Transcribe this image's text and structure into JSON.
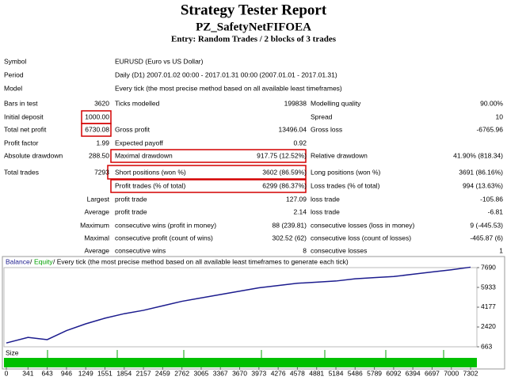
{
  "report": {
    "title": "Strategy Tester Report",
    "expert": "PZ_SafetyNetFIFOEA",
    "entry": "Entry: Random Trades / 2 blocks of 3 trades"
  },
  "rows": [
    [
      "Symbol",
      "EURUSD (Euro vs US Dollar)"
    ],
    [
      "Period",
      "Daily (D1) 2007.01.02 00:00 - 2017.01.31 00:00 (2007.01.01 - 2017.01.31)"
    ],
    [
      "Model",
      "Every tick (the most precise method based on all available least timeframes)"
    ],
    [
      "Bars in test",
      "3620",
      "Ticks modelled",
      "199838",
      "Modelling quality",
      "90.00%"
    ],
    [
      "Initial deposit",
      "1000.00",
      null,
      null,
      "Spread",
      "10"
    ],
    [
      "Total net profit",
      "6730.08",
      "Gross profit",
      "13496.04",
      "Gross loss",
      "-6765.96"
    ],
    [
      "Profit factor",
      "1.99",
      "Expected payoff",
      "0.92",
      null,
      null
    ],
    [
      "Absolute drawdown",
      "288.50",
      "Maximal drawdown",
      "917.75 (12.52%)",
      "Relative drawdown",
      "41.90% (818.34)"
    ],
    [
      "Total trades",
      "7293",
      "Short positions (won %)",
      "3602 (86.59%)",
      "Long positions (won %)",
      "3691 (86.16%)"
    ],
    [
      null,
      null,
      "Profit trades (% of total)",
      "6299 (86.37%)",
      "Loss trades (% of total)",
      "994 (13.63%)"
    ],
    [
      null,
      "Largest",
      "profit trade",
      "127.09",
      "loss trade",
      "-105.86"
    ],
    [
      null,
      "Average",
      "profit trade",
      "2.14",
      "loss trade",
      "-6.81"
    ],
    [
      null,
      "Maximum",
      "consecutive wins (profit in money)",
      "88 (239.81)",
      "consecutive losses (loss in money)",
      "9 (-445.53)"
    ],
    [
      null,
      "Maximal",
      "consecutive profit (count of wins)",
      "302.52 (62)",
      "consecutive loss (count of losses)",
      "-465.87 (6)"
    ],
    [
      null,
      "Average",
      "consecutive wins",
      "8",
      "consecutive losses",
      "1"
    ]
  ],
  "chart_data": {
    "type": "line",
    "legend_separator": "/",
    "equity_label": "Equity",
    "subtitle": "/ Every tick (the most precise method based on all available least timeframes to generate each tick)",
    "size_label": "Size",
    "x": [
      0,
      341,
      643,
      946,
      1249,
      1551,
      1854,
      2157,
      2459,
      2762,
      3065,
      3367,
      3670,
      3973,
      4276,
      4578,
      4881,
      5184,
      5486,
      5789,
      6092,
      6394,
      6697,
      7000,
      7302
    ],
    "series": [
      {
        "name": "Balance",
        "color": "#1c1c8e",
        "values": [
          1000,
          1500,
          1300,
          2100,
          2700,
          3200,
          3600,
          3900,
          4300,
          4700,
          5000,
          5300,
          5600,
          5900,
          6100,
          6300,
          6400,
          6500,
          6700,
          6800,
          6900,
          7100,
          7300,
          7500,
          7730
        ]
      }
    ],
    "xlim": [
      0,
      7302
    ],
    "ylim": [
      663,
      7690
    ],
    "xticks": [
      0,
      341,
      643,
      946,
      1249,
      1551,
      1854,
      2157,
      2459,
      2762,
      3065,
      3367,
      3670,
      3973,
      4276,
      4578,
      4881,
      5184,
      5486,
      5789,
      6092,
      6394,
      6697,
      7000,
      7302
    ],
    "yticks": [
      663,
      2420,
      4177,
      5933,
      7690
    ],
    "grid": false
  }
}
